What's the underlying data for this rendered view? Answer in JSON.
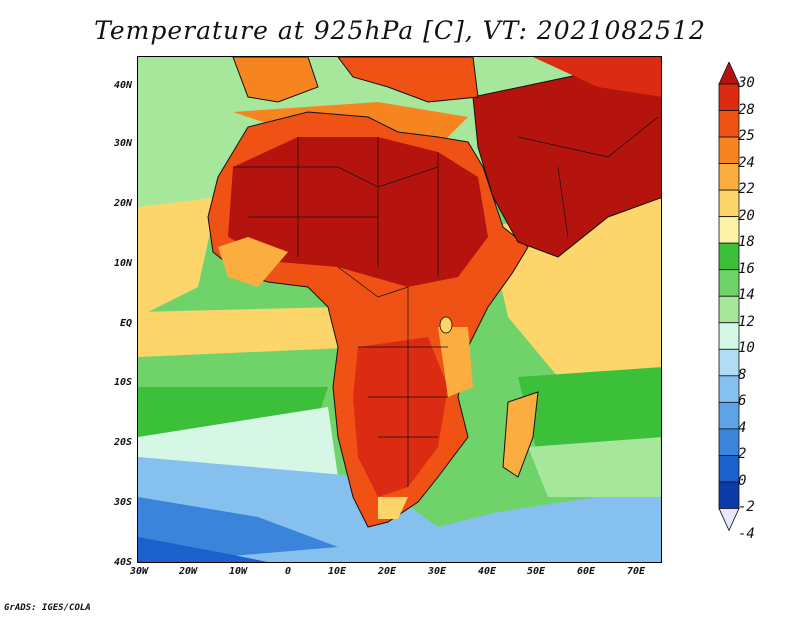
{
  "title": "Temperature at 925hPa [C], VT: 2021082512",
  "footer": "GrADS: IGES/COLA",
  "lat_labels": [
    "40N",
    "30N",
    "20N",
    "10N",
    "EQ",
    "10S",
    "20S",
    "30S",
    "40S"
  ],
  "lon_labels": [
    "30W",
    "20W",
    "10W",
    "0",
    "10E",
    "20E",
    "30E",
    "40E",
    "50E",
    "60E",
    "70E"
  ],
  "colorbar": {
    "labels": [
      "30",
      "28",
      "25",
      "24",
      "22",
      "20",
      "18",
      "16",
      "14",
      "12",
      "10",
      "8",
      "6",
      "4",
      "2",
      "0",
      "-2",
      "-4"
    ],
    "colors": [
      "#b5140e",
      "#db2b12",
      "#f05215",
      "#f7851f",
      "#fbae3f",
      "#fcd66a",
      "#fdf3a8",
      "#3cc03a",
      "#6fd36a",
      "#a6e79c",
      "#d6f6e6",
      "#b0dcf6",
      "#86c0ee",
      "#5ea3e6",
      "#3a85db",
      "#1b61cc",
      "#0c3aa8",
      "#071a6b"
    ]
  },
  "map_colors": {
    "land_hot": "#b5140e",
    "land_warm": "#db2b12",
    "land_mild": "#f05215",
    "ocean_trop": "#fcd66a",
    "ocean_green": "#3cc03a",
    "ocean_light": "#a6e79c",
    "ocean_cool": "#86c0ee",
    "ocean_cold": "#3a85db"
  }
}
